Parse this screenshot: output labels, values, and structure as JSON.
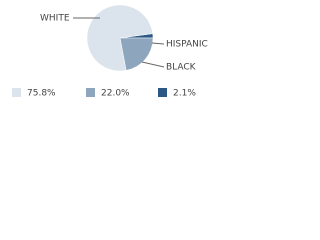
{
  "chart_data": {
    "type": "pie",
    "categories": [
      "WHITE",
      "BLACK",
      "HISPANIC"
    ],
    "values": [
      75.8,
      22.0,
      2.1
    ],
    "value_labels": [
      "75.8%",
      "22.0%",
      "2.1%"
    ],
    "colors": [
      "#dbe4ed",
      "#8da6bd",
      "#2d5885"
    ]
  }
}
